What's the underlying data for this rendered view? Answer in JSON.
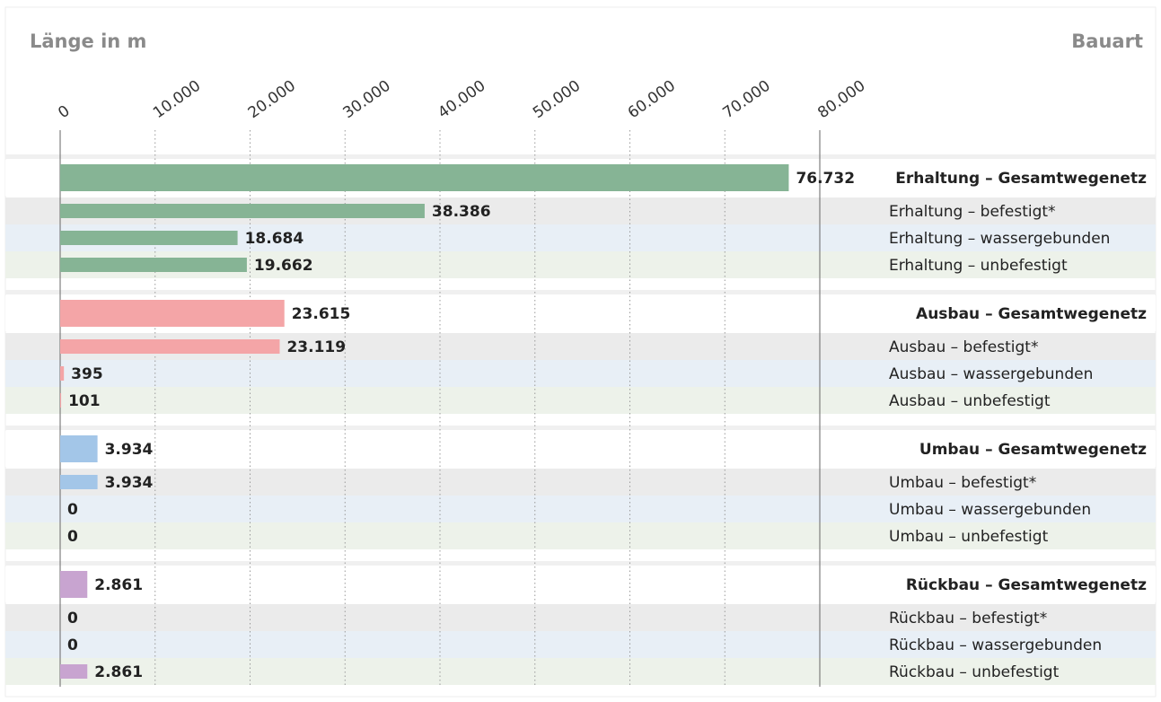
{
  "chart_data": {
    "type": "barh",
    "xlabel": "Länge in m",
    "ylabel": "Bauart",
    "categories": [
      "Erhaltung – Gesamtwegenetz",
      "Erhaltung – befestigt*",
      "Erhaltung – wassergebunden",
      "Erhaltung – unbefestigt",
      "Ausbau – Gesamtwegenetz",
      "Ausbau – befestigt*",
      "Ausbau – wassergebunden",
      "Ausbau – unbefestigt",
      "Umbau – Gesamtwegenetz",
      "Umbau – befestigt*",
      "Umbau – wassergebunden",
      "Umbau – unbefestigt",
      "Rückbau – Gesamtwegenetz",
      "Rückbau – befestigt*",
      "Rückbau – wassergebunden",
      "Rückbau – unbefestigt"
    ],
    "values": [
      76732,
      38386,
      18684,
      19662,
      23615,
      23119,
      395,
      101,
      3934,
      3934,
      0,
      0,
      2861,
      0,
      0,
      2861
    ],
    "value_labels": [
      "76.732",
      "38.386",
      "18.684",
      "19.662",
      "23.615",
      "23.119",
      "395",
      "101",
      "3.934",
      "3.934",
      "0",
      "0",
      "2.861",
      "0",
      "0",
      "2.861"
    ],
    "colors": [
      "#86b495",
      "#86b495",
      "#86b495",
      "#86b495",
      "#f4a5a7",
      "#f4a5a7",
      "#f4a5a7",
      "#f4a5a7",
      "#a3c6e8",
      "#a3c6e8",
      "#a3c6e8",
      "#a3c6e8",
      "#c8a4d0",
      "#c8a4d0",
      "#c8a4d0",
      "#c8a4d0"
    ],
    "xlim": [
      0,
      80000
    ],
    "xticks": [
      0,
      {
        "value": 10000,
        "label": "10.000"
      },
      {
        "value": 20000,
        "label": "20.000"
      },
      {
        "value": 30000,
        "label": "30.000"
      },
      {
        "value": 40000,
        "label": "40.000"
      },
      {
        "value": 50000,
        "label": "50.000"
      },
      {
        "value": 60000,
        "label": "60.000"
      },
      {
        "value": 70000,
        "label": "70.000"
      },
      {
        "value": 80000,
        "label": "80.000"
      }
    ],
    "grid": true
  }
}
